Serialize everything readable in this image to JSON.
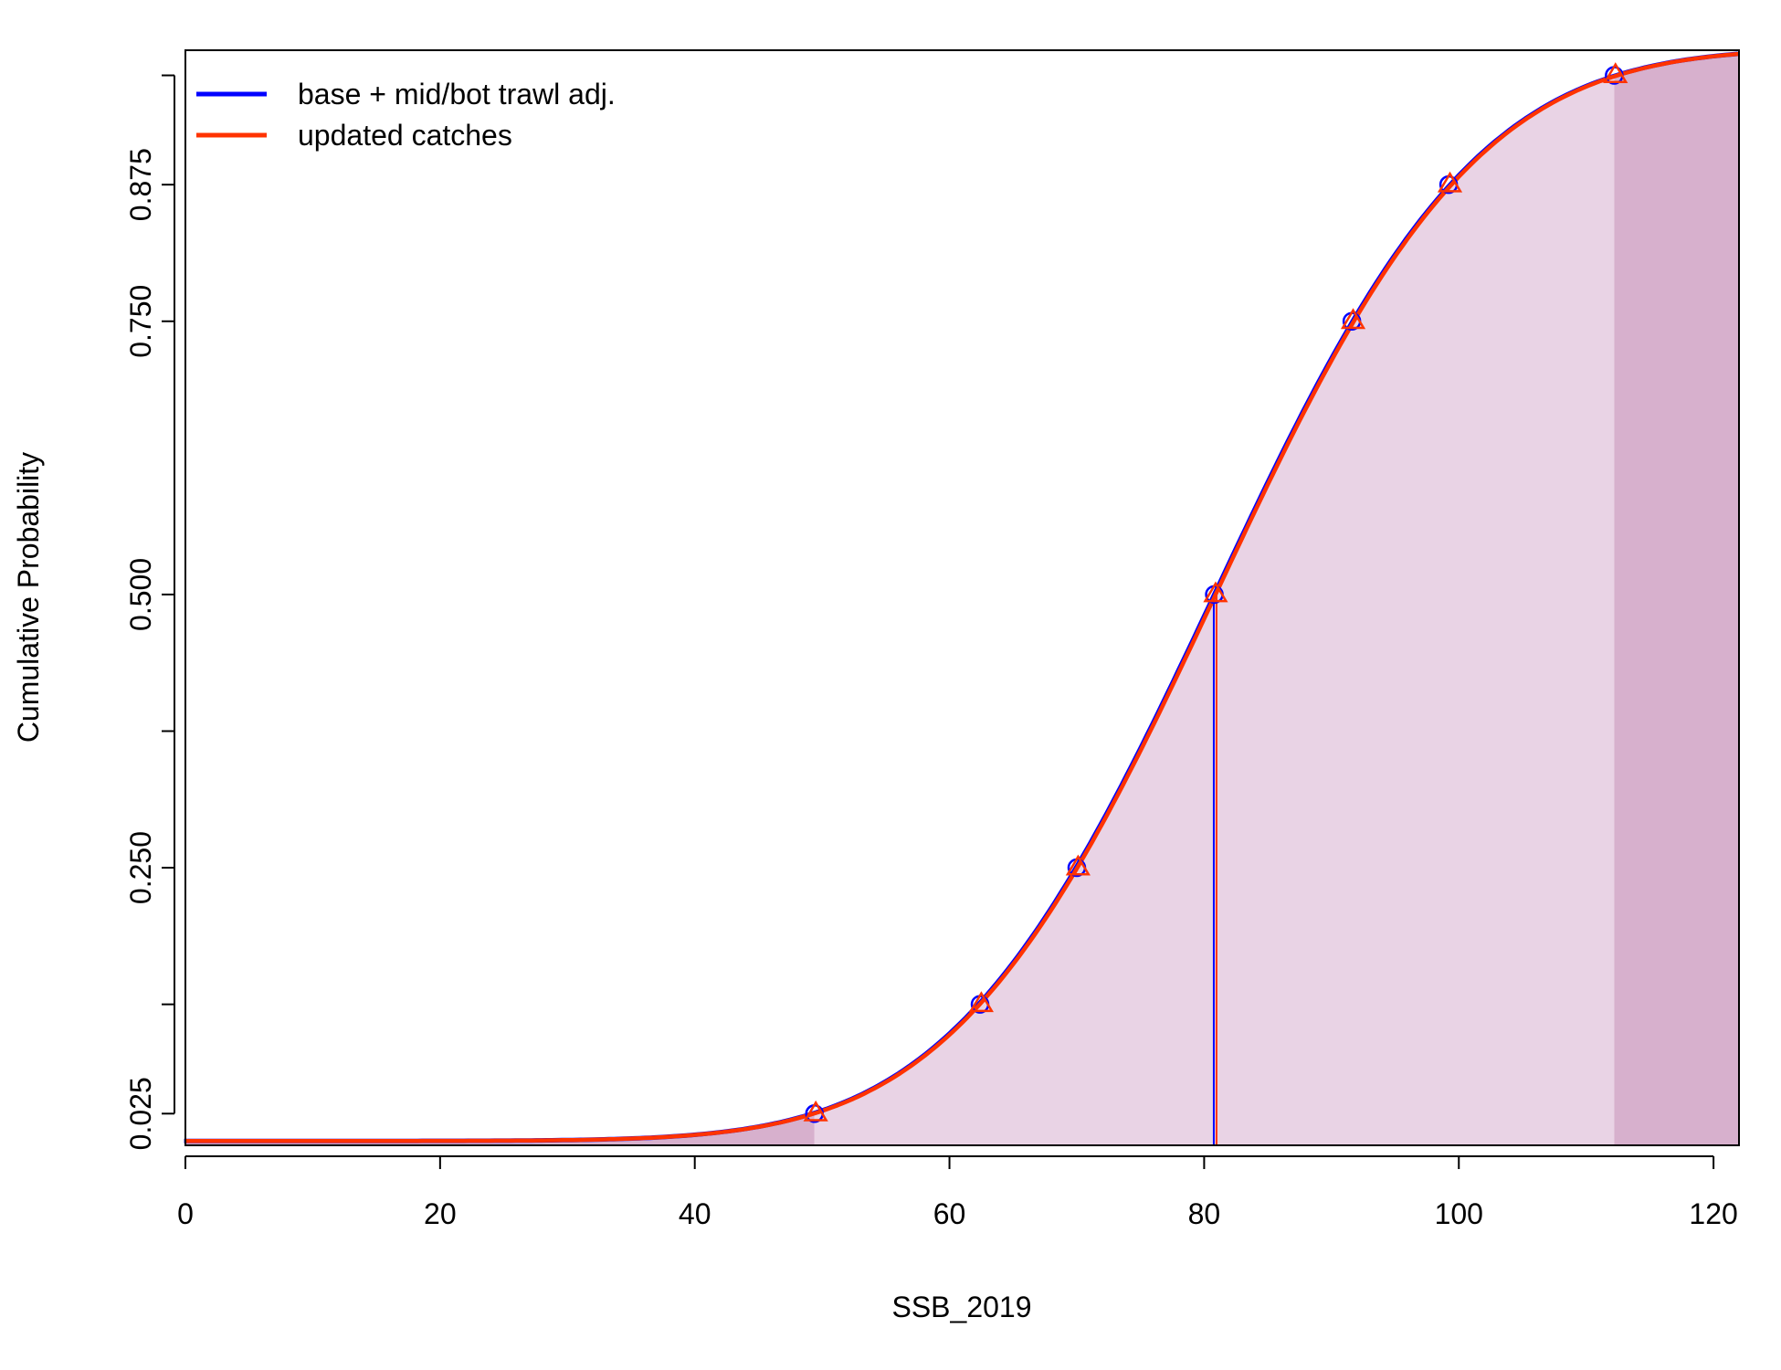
{
  "chart_data": {
    "type": "line",
    "title": "",
    "xlabel": "SSB_2019",
    "ylabel": "Cumulative Probability",
    "xlim": [
      0,
      122
    ],
    "ylim": [
      0,
      1
    ],
    "x_ticks": [
      "0",
      "20",
      "40",
      "60",
      "80",
      "100",
      "120"
    ],
    "y_ticks": [
      {
        "value": 0.025,
        "label": "0.025"
      },
      {
        "value": 0.125,
        "label": ""
      },
      {
        "value": 0.25,
        "label": "0.250"
      },
      {
        "value": 0.375,
        "label": ""
      },
      {
        "value": 0.5,
        "label": "0.500"
      },
      {
        "value": 0.75,
        "label": "0.750"
      },
      {
        "value": 0.875,
        "label": "0.875"
      },
      {
        "value": 0.975,
        "label": ""
      }
    ],
    "grid": false,
    "legend_position": "top-left",
    "distribution": {
      "mean": 80.9,
      "sd": 16.1
    },
    "shaded_interval": {
      "lower": 49.4,
      "upper": 112.2,
      "inner_color": "#e9d3e5",
      "outer_color": "#d7b0cd"
    },
    "median_line": {
      "x": 80.9,
      "y": 0.5
    },
    "series": [
      {
        "name": "base + mid/bot trawl adj.",
        "color": "#0000ff",
        "marker": "circle",
        "quantile_points": [
          {
            "x": 49.4,
            "y": 0.025
          },
          {
            "x": 62.4,
            "y": 0.125
          },
          {
            "x": 70.0,
            "y": 0.25
          },
          {
            "x": 80.8,
            "y": 0.5
          },
          {
            "x": 91.6,
            "y": 0.75
          },
          {
            "x": 99.2,
            "y": 0.875
          },
          {
            "x": 112.2,
            "y": 0.975
          }
        ]
      },
      {
        "name": "updated catches",
        "color": "#ff3300",
        "marker": "triangle",
        "quantile_points": [
          {
            "x": 49.5,
            "y": 0.025
          },
          {
            "x": 62.5,
            "y": 0.125
          },
          {
            "x": 70.1,
            "y": 0.25
          },
          {
            "x": 80.9,
            "y": 0.5
          },
          {
            "x": 91.7,
            "y": 0.75
          },
          {
            "x": 99.3,
            "y": 0.875
          },
          {
            "x": 112.3,
            "y": 0.975
          }
        ]
      }
    ]
  }
}
